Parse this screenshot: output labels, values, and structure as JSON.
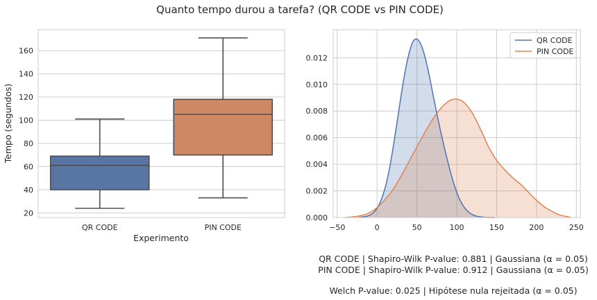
{
  "figure": {
    "title": "Quanto tempo durou a tarefa? (QR CODE vs PIN CODE)",
    "notes": [
      "QR CODE | Shapiro-Wilk P-value: 0.881 | Gaussiana (α = 0.05)",
      "PIN CODE | Shapiro-Wilk P-value: 0.912 | Gaussiana (α = 0.05)",
      "Welch P-value: 0.025 | Hipótese nula rejeitada (α = 0.05)"
    ]
  },
  "colors": {
    "qr": "#4c72b0",
    "pin": "#dd8452",
    "qr_box": "#5975a4",
    "pin_box": "#cc8963",
    "grid": "#cccccc",
    "frame": "#cccccc",
    "line": "#4d4d4d"
  },
  "chart_data": [
    {
      "type": "box",
      "title": "",
      "xlabel": "Experimento",
      "ylabel": "Tempo (segundos)",
      "categories": [
        "QR CODE",
        "PIN CODE"
      ],
      "ylim": [
        16,
        178
      ],
      "yticks": [
        20,
        40,
        60,
        80,
        100,
        120,
        140,
        160
      ],
      "boxes": [
        {
          "category": "QR CODE",
          "whisker_low": 24,
          "q1": 40,
          "median": 61,
          "q3": 69,
          "whisker_high": 101
        },
        {
          "category": "PIN CODE",
          "whisker_low": 33,
          "q1": 70,
          "median": 105,
          "q3": 118,
          "whisker_high": 171
        }
      ],
      "grid": true
    },
    {
      "type": "area",
      "title": "",
      "xlabel": "",
      "ylabel": "",
      "xlim": [
        -55,
        255
      ],
      "ylim": [
        0,
        0.0141
      ],
      "xticks": [
        -50,
        0,
        50,
        100,
        150,
        200,
        250
      ],
      "yticks": [
        0.0,
        0.002,
        0.004,
        0.006,
        0.008,
        0.01,
        0.012
      ],
      "legend_position": "top-right",
      "grid": true,
      "series": [
        {
          "name": "QR CODE",
          "x": [
            -23,
            -15,
            -10,
            -5,
            0,
            5,
            10,
            15,
            20,
            25,
            30,
            35,
            40,
            45,
            50,
            55,
            60,
            65,
            70,
            75,
            80,
            85,
            90,
            95,
            100,
            105,
            110,
            115,
            120,
            125,
            130,
            135,
            140,
            148
          ],
          "y": [
            1e-05,
            7e-05,
            0.00015,
            0.00034,
            0.0007,
            0.0013,
            0.0022,
            0.0035,
            0.0052,
            0.0071,
            0.0091,
            0.0109,
            0.0123,
            0.0132,
            0.0134,
            0.013,
            0.0121,
            0.0108,
            0.0093,
            0.0078,
            0.0064,
            0.0051,
            0.0039,
            0.0028,
            0.0019,
            0.0012,
            0.00072,
            0.0004,
            0.00021,
            0.0001,
            5e-05,
            2e-05,
            1e-05,
            0.0
          ]
        },
        {
          "name": "PIN CODE",
          "x": [
            -40,
            -30,
            -20,
            -10,
            0,
            10,
            20,
            30,
            40,
            50,
            60,
            70,
            80,
            90,
            98,
            105,
            110,
            120,
            130,
            140,
            150,
            160,
            170,
            180,
            190,
            200,
            210,
            220,
            230,
            243
          ],
          "y": [
            1e-05,
            5e-05,
            0.00015,
            0.00035,
            0.00075,
            0.00135,
            0.0021,
            0.0031,
            0.0042,
            0.0053,
            0.0064,
            0.0074,
            0.0082,
            0.00875,
            0.0089,
            0.0088,
            0.0086,
            0.0078,
            0.0066,
            0.0053,
            0.0043,
            0.0036,
            0.003,
            0.0025,
            0.0019,
            0.0013,
            0.0008,
            0.00045,
            0.00018,
            2e-05
          ]
        }
      ]
    }
  ]
}
